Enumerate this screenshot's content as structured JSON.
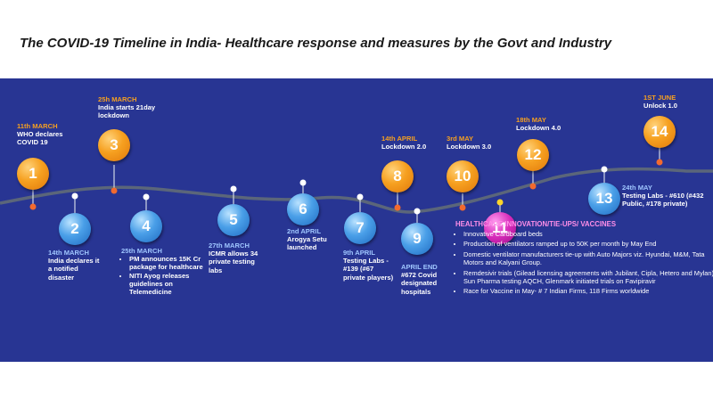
{
  "title": "The COVID-19 Timeline in India- Healthcare response and measures by the Govt and Industry",
  "colors": {
    "panel": "#283593",
    "orange": "#f6a020",
    "blue": "#4a9fe8",
    "magenta": "#d62ab9",
    "date_blue": "#9fc6ff"
  },
  "events": [
    {
      "num": "1",
      "date": "11th MARCH",
      "text": "WHO declares COVID 19"
    },
    {
      "num": "2",
      "date": "14th MARCH",
      "text": "India declares it a notified disaster"
    },
    {
      "num": "3",
      "date": "25h MARCH",
      "text": "India starts 21day lockdown"
    },
    {
      "num": "4",
      "date": "25th MARCH",
      "bullets": [
        "PM announces 15K Cr package for healthcare",
        "NITI Ayog releases guidelines on Telemedicine"
      ]
    },
    {
      "num": "5",
      "date": "27th MARCH",
      "text": "ICMR allows 34 private testing labs"
    },
    {
      "num": "6",
      "date": "2nd APRIL",
      "text": "Arogya Setu launched"
    },
    {
      "num": "7",
      "date": "9th APRIL",
      "text": "Testing Labs - #139 (#67 private players)"
    },
    {
      "num": "8",
      "date": "14th APRIL",
      "text": "Lockdown 2.0"
    },
    {
      "num": "9",
      "date": "APRIL END",
      "text": "#672 Covid designated hospitals"
    },
    {
      "num": "10",
      "date": "3rd MAY",
      "text": "Lockdown 3.0"
    },
    {
      "num": "11"
    },
    {
      "num": "12",
      "date": "18th MAY",
      "text": "Lockdown 4.0"
    },
    {
      "num": "13",
      "date": "24th MAY",
      "text": "Testing Labs - #610 (#432 Public, #178 private)"
    },
    {
      "num": "14",
      "date": "1ST JUNE",
      "text": "Unlock 1.0"
    }
  ],
  "healthcare": {
    "title": "HEALTHCARE INNOVATION/TIE-UPS/ VACCINES",
    "items": [
      "Innovative Cardboard beds",
      "Production of ventilators ramped up to 50K per month by May End",
      "Domestic ventilator manufacturers tie-up with Auto Majors viz. Hyundai, M&M, Tata Motors and Kalyani Group.",
      "Remdesivir trials (Gilead licensing agreements with Jubilant, Cipla, Hetero and Mylan), Sun Pharma testing AQCH, Glenmark initiated trials on Favipiravir",
      "Race for Vaccine in May- # 7 Indian Firms, 118 Firms worldwide"
    ]
  }
}
